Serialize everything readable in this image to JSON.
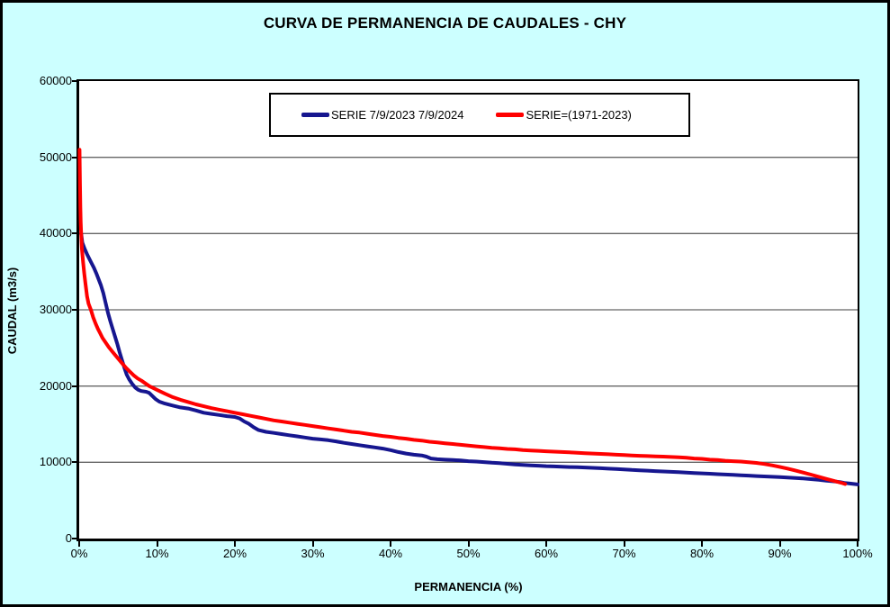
{
  "window": {
    "title": "CURVA DE PERMANENCIA DE CAUDALES - CHY"
  },
  "colors": {
    "background": "#CCFFFF",
    "plot_background": "#FFFFFF",
    "frame": "#000000",
    "grid": "#666666",
    "axis": "#000000",
    "series1": "#16168F",
    "series2": "#FF0000"
  },
  "chart_data": {
    "type": "line",
    "title": "CURVA DE PERMANENCIA DE CAUDALES - CHY",
    "xlabel": "PERMANENCIA (%)",
    "ylabel": "CAUDAL (m3/s)",
    "xlim": [
      0,
      100
    ],
    "ylim": [
      0,
      60000
    ],
    "grid": "horizontal",
    "legend_position": "top-center-inside",
    "x_tick_values": [
      0,
      10,
      20,
      30,
      40,
      50,
      60,
      70,
      80,
      90,
      100
    ],
    "x_tick_labels": [
      "0%",
      "10%",
      "20%",
      "30%",
      "40%",
      "50%",
      "60%",
      "70%",
      "80%",
      "90%",
      "100%"
    ],
    "y_tick_values": [
      0,
      10000,
      20000,
      30000,
      40000,
      50000,
      60000
    ],
    "y_tick_labels": [
      "0",
      "10000",
      "20000",
      "30000",
      "40000",
      "50000",
      "60000"
    ],
    "series": [
      {
        "name": "SERIE 7/9/2023 7/9/2024",
        "color": "#16168F",
        "points": [
          [
            0.25,
            40000
          ],
          [
            0.4,
            38800
          ],
          [
            0.7,
            38000
          ],
          [
            1,
            37300
          ],
          [
            1.3,
            36700
          ],
          [
            1.6,
            36100
          ],
          [
            1.9,
            35500
          ],
          [
            2.2,
            34800
          ],
          [
            2.5,
            34000
          ],
          [
            2.8,
            33200
          ],
          [
            3.1,
            32200
          ],
          [
            3.4,
            30900
          ],
          [
            3.7,
            29600
          ],
          [
            4,
            28500
          ],
          [
            4.3,
            27500
          ],
          [
            4.6,
            26500
          ],
          [
            4.9,
            25500
          ],
          [
            5.2,
            24400
          ],
          [
            5.5,
            23400
          ],
          [
            5.8,
            22400
          ],
          [
            6.1,
            21500
          ],
          [
            6.4,
            20900
          ],
          [
            6.8,
            20300
          ],
          [
            7.2,
            19800
          ],
          [
            7.6,
            19500
          ],
          [
            8,
            19350
          ],
          [
            8.6,
            19250
          ],
          [
            9,
            19100
          ],
          [
            9.4,
            18700
          ],
          [
            9.8,
            18300
          ],
          [
            10.3,
            17950
          ],
          [
            11,
            17700
          ],
          [
            12,
            17450
          ],
          [
            13,
            17200
          ],
          [
            14,
            17050
          ],
          [
            15,
            16800
          ],
          [
            16,
            16500
          ],
          [
            17,
            16350
          ],
          [
            18,
            16200
          ],
          [
            19,
            16050
          ],
          [
            20,
            15950
          ],
          [
            20.6,
            15750
          ],
          [
            21.2,
            15350
          ],
          [
            21.8,
            15050
          ],
          [
            22.4,
            14600
          ],
          [
            23,
            14250
          ],
          [
            24,
            14000
          ],
          [
            25,
            13850
          ],
          [
            26,
            13700
          ],
          [
            27,
            13550
          ],
          [
            28,
            13400
          ],
          [
            29,
            13250
          ],
          [
            30,
            13100
          ],
          [
            31,
            13000
          ],
          [
            32,
            12900
          ],
          [
            33,
            12750
          ],
          [
            34,
            12550
          ],
          [
            35,
            12400
          ],
          [
            36,
            12250
          ],
          [
            37,
            12100
          ],
          [
            38,
            11950
          ],
          [
            39,
            11800
          ],
          [
            40,
            11600
          ],
          [
            41,
            11350
          ],
          [
            42,
            11150
          ],
          [
            43,
            11000
          ],
          [
            44,
            10900
          ],
          [
            44.6,
            10750
          ],
          [
            45.2,
            10500
          ],
          [
            46,
            10400
          ],
          [
            47,
            10350
          ],
          [
            48,
            10300
          ],
          [
            49,
            10250
          ],
          [
            50,
            10150
          ],
          [
            51,
            10100
          ],
          [
            52,
            10030
          ],
          [
            53,
            9950
          ],
          [
            54,
            9880
          ],
          [
            55,
            9800
          ],
          [
            56,
            9720
          ],
          [
            57,
            9660
          ],
          [
            58,
            9600
          ],
          [
            59,
            9550
          ],
          [
            60,
            9500
          ],
          [
            61,
            9460
          ],
          [
            62,
            9420
          ],
          [
            63,
            9380
          ],
          [
            64,
            9350
          ],
          [
            65,
            9320
          ],
          [
            66,
            9270
          ],
          [
            67,
            9220
          ],
          [
            68,
            9170
          ],
          [
            69,
            9120
          ],
          [
            70,
            9070
          ],
          [
            71,
            9000
          ],
          [
            72,
            8950
          ],
          [
            73,
            8900
          ],
          [
            74,
            8850
          ],
          [
            75,
            8800
          ],
          [
            76,
            8750
          ],
          [
            77,
            8700
          ],
          [
            78,
            8650
          ],
          [
            79,
            8600
          ],
          [
            80,
            8550
          ],
          [
            81,
            8500
          ],
          [
            82,
            8450
          ],
          [
            83,
            8400
          ],
          [
            84,
            8350
          ],
          [
            85,
            8300
          ],
          [
            86,
            8250
          ],
          [
            87,
            8200
          ],
          [
            88,
            8150
          ],
          [
            89,
            8100
          ],
          [
            90,
            8050
          ],
          [
            91,
            8000
          ],
          [
            92,
            7950
          ],
          [
            93,
            7880
          ],
          [
            94,
            7800
          ],
          [
            95,
            7700
          ],
          [
            96,
            7600
          ],
          [
            97,
            7500
          ],
          [
            97.7,
            7420
          ],
          [
            98.3,
            7300
          ],
          [
            99,
            7220
          ],
          [
            99.5,
            7160
          ],
          [
            100,
            7100
          ]
        ]
      },
      {
        "name": "SERIE=(1971-2023)",
        "color": "#FF0000",
        "points": [
          [
            0.05,
            51000
          ],
          [
            0.1,
            46500
          ],
          [
            0.15,
            43500
          ],
          [
            0.2,
            41500
          ],
          [
            0.25,
            40000
          ],
          [
            0.35,
            38000
          ],
          [
            0.5,
            36300
          ],
          [
            0.65,
            34800
          ],
          [
            0.8,
            33500
          ],
          [
            1,
            31800
          ],
          [
            1.2,
            30800
          ],
          [
            1.5,
            30000
          ],
          [
            1.8,
            29000
          ],
          [
            2.1,
            28200
          ],
          [
            2.4,
            27500
          ],
          [
            2.7,
            26900
          ],
          [
            3,
            26300
          ],
          [
            3.4,
            25700
          ],
          [
            3.8,
            25100
          ],
          [
            4.2,
            24600
          ],
          [
            4.6,
            24100
          ],
          [
            5,
            23600
          ],
          [
            5.5,
            23000
          ],
          [
            6,
            22400
          ],
          [
            6.5,
            21900
          ],
          [
            7,
            21400
          ],
          [
            7.5,
            21000
          ],
          [
            8,
            20700
          ],
          [
            8.5,
            20350
          ],
          [
            9,
            20000
          ],
          [
            9.5,
            19750
          ],
          [
            10,
            19500
          ],
          [
            11,
            19000
          ],
          [
            12,
            18550
          ],
          [
            13,
            18200
          ],
          [
            14,
            17900
          ],
          [
            15,
            17600
          ],
          [
            16,
            17350
          ],
          [
            17,
            17100
          ],
          [
            18,
            16900
          ],
          [
            19,
            16700
          ],
          [
            20,
            16500
          ],
          [
            21,
            16300
          ],
          [
            22,
            16100
          ],
          [
            23,
            15900
          ],
          [
            24,
            15700
          ],
          [
            25,
            15500
          ],
          [
            26,
            15350
          ],
          [
            27,
            15200
          ],
          [
            28,
            15050
          ],
          [
            29,
            14900
          ],
          [
            30,
            14750
          ],
          [
            31,
            14600
          ],
          [
            32,
            14450
          ],
          [
            33,
            14300
          ],
          [
            34,
            14150
          ],
          [
            35,
            14000
          ],
          [
            36,
            13900
          ],
          [
            37,
            13750
          ],
          [
            38,
            13600
          ],
          [
            39,
            13450
          ],
          [
            40,
            13350
          ],
          [
            41,
            13200
          ],
          [
            42,
            13100
          ],
          [
            43,
            12950
          ],
          [
            44,
            12850
          ],
          [
            45,
            12700
          ],
          [
            46,
            12600
          ],
          [
            47,
            12500
          ],
          [
            48,
            12400
          ],
          [
            49,
            12300
          ],
          [
            50,
            12200
          ],
          [
            51,
            12100
          ],
          [
            52,
            12000
          ],
          [
            53,
            11900
          ],
          [
            54,
            11850
          ],
          [
            55,
            11750
          ],
          [
            56,
            11700
          ],
          [
            57,
            11600
          ],
          [
            58,
            11550
          ],
          [
            59,
            11500
          ],
          [
            60,
            11450
          ],
          [
            61,
            11400
          ],
          [
            62,
            11350
          ],
          [
            63,
            11300
          ],
          [
            64,
            11250
          ],
          [
            65,
            11200
          ],
          [
            66,
            11150
          ],
          [
            67,
            11100
          ],
          [
            68,
            11050
          ],
          [
            69,
            11000
          ],
          [
            70,
            10950
          ],
          [
            71,
            10900
          ],
          [
            72,
            10850
          ],
          [
            73,
            10820
          ],
          [
            74,
            10780
          ],
          [
            75,
            10750
          ],
          [
            76,
            10700
          ],
          [
            77,
            10650
          ],
          [
            78,
            10600
          ],
          [
            79,
            10500
          ],
          [
            80,
            10450
          ],
          [
            81,
            10350
          ],
          [
            82,
            10300
          ],
          [
            83,
            10200
          ],
          [
            84,
            10150
          ],
          [
            85,
            10100
          ],
          [
            86,
            10020
          ],
          [
            87,
            9920
          ],
          [
            88,
            9780
          ],
          [
            89,
            9600
          ],
          [
            90,
            9400
          ],
          [
            91,
            9180
          ],
          [
            92,
            8930
          ],
          [
            93,
            8660
          ],
          [
            94,
            8380
          ],
          [
            95,
            8100
          ],
          [
            96,
            7820
          ],
          [
            97,
            7550
          ],
          [
            97.6,
            7380
          ],
          [
            98.1,
            7250
          ],
          [
            98.4,
            7150
          ]
        ]
      }
    ]
  }
}
